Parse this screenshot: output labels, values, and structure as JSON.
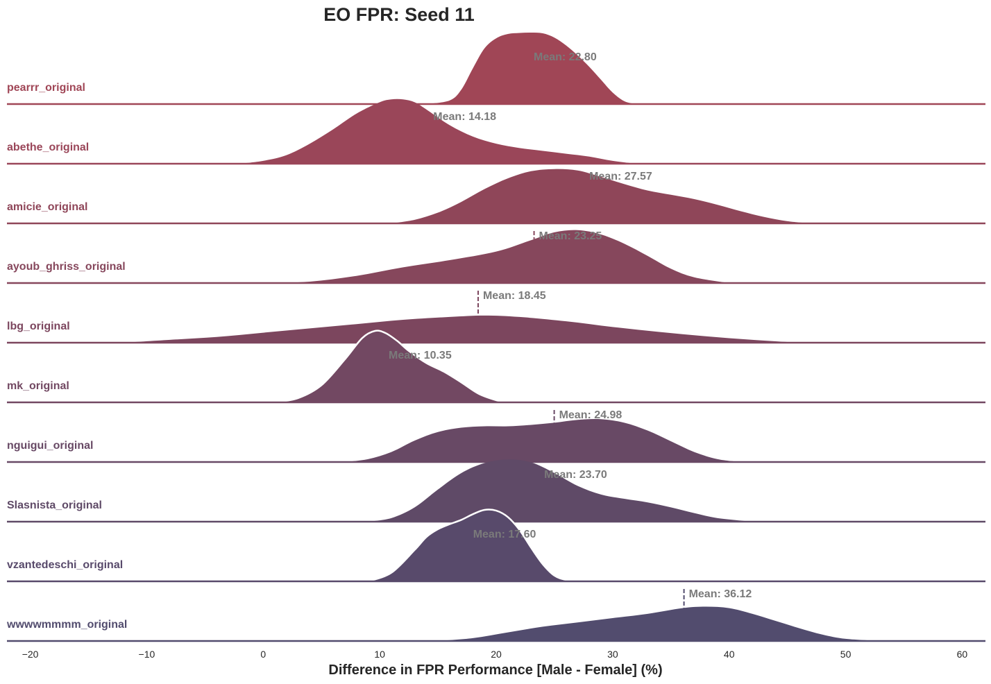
{
  "chart_data": {
    "type": "ridgeline-density",
    "title": "EO FPR: Seed 11",
    "xlabel": "Difference in FPR Performance [Male - Female] (%)",
    "ylabel": "",
    "xlim": [
      -22,
      62
    ],
    "xticks": [
      -20,
      -10,
      0,
      10,
      20,
      30,
      40,
      50,
      60
    ],
    "xtick_labels": [
      "−20",
      "−10",
      "0",
      "10",
      "20",
      "30",
      "40",
      "50",
      "60"
    ],
    "grid": false,
    "series": [
      {
        "name": "pearrr_original",
        "mean": 22.8,
        "mean_label": "Mean: 22.80",
        "color": "#a04656",
        "white_outline": false,
        "density": [
          [
            14,
            0
          ],
          [
            16,
            0.05
          ],
          [
            17,
            0.2
          ],
          [
            18,
            0.5
          ],
          [
            19,
            0.78
          ],
          [
            20,
            0.92
          ],
          [
            21,
            0.98
          ],
          [
            22,
            0.995
          ],
          [
            23,
            1.0
          ],
          [
            24,
            0.99
          ],
          [
            25,
            0.93
          ],
          [
            26,
            0.82
          ],
          [
            27,
            0.68
          ],
          [
            28,
            0.52
          ],
          [
            29,
            0.34
          ],
          [
            30,
            0.16
          ],
          [
            31,
            0.04
          ],
          [
            32,
            0
          ]
        ]
      },
      {
        "name": "abethe_original",
        "mean": 14.18,
        "mean_label": "Mean: 14.18",
        "color": "#9a4659",
        "white_outline": false,
        "density": [
          [
            -2,
            0
          ],
          [
            0,
            0.04
          ],
          [
            2,
            0.12
          ],
          [
            4,
            0.28
          ],
          [
            6,
            0.48
          ],
          [
            8,
            0.7
          ],
          [
            10,
            0.86
          ],
          [
            11,
            0.9
          ],
          [
            12,
            0.9
          ],
          [
            13,
            0.86
          ],
          [
            14,
            0.76
          ],
          [
            16,
            0.54
          ],
          [
            18,
            0.38
          ],
          [
            20,
            0.28
          ],
          [
            22,
            0.22
          ],
          [
            24,
            0.18
          ],
          [
            26,
            0.14
          ],
          [
            28,
            0.1
          ],
          [
            30,
            0.04
          ],
          [
            32,
            0
          ]
        ]
      },
      {
        "name": "amicie_original",
        "mean": 27.57,
        "mean_label": "Mean: 27.57",
        "color": "#8f4659",
        "white_outline": false,
        "density": [
          [
            11,
            0
          ],
          [
            13,
            0.05
          ],
          [
            15,
            0.15
          ],
          [
            17,
            0.3
          ],
          [
            19,
            0.48
          ],
          [
            21,
            0.63
          ],
          [
            23,
            0.73
          ],
          [
            25,
            0.76
          ],
          [
            27,
            0.74
          ],
          [
            29,
            0.65
          ],
          [
            31,
            0.55
          ],
          [
            33,
            0.46
          ],
          [
            35,
            0.4
          ],
          [
            37,
            0.34
          ],
          [
            39,
            0.26
          ],
          [
            41,
            0.17
          ],
          [
            43,
            0.09
          ],
          [
            45,
            0.03
          ],
          [
            47,
            0
          ]
        ]
      },
      {
        "name": "ayoub_ghriss_original",
        "mean": 23.25,
        "mean_label": "Mean: 23.25",
        "color": "#86475c",
        "white_outline": false,
        "density": [
          [
            0,
            0
          ],
          [
            4,
            0.02
          ],
          [
            8,
            0.1
          ],
          [
            12,
            0.22
          ],
          [
            16,
            0.32
          ],
          [
            20,
            0.44
          ],
          [
            23,
            0.6
          ],
          [
            25,
            0.71
          ],
          [
            27,
            0.74
          ],
          [
            29,
            0.68
          ],
          [
            31,
            0.55
          ],
          [
            33,
            0.38
          ],
          [
            35,
            0.2
          ],
          [
            37,
            0.08
          ],
          [
            40,
            0
          ]
        ]
      },
      {
        "name": "lbg_original",
        "mean": 18.45,
        "mean_label": "Mean: 18.45",
        "color": "#7c465e",
        "white_outline": false,
        "density": [
          [
            -12,
            0
          ],
          [
            -8,
            0.04
          ],
          [
            -4,
            0.08
          ],
          [
            0,
            0.14
          ],
          [
            4,
            0.2
          ],
          [
            8,
            0.26
          ],
          [
            12,
            0.32
          ],
          [
            16,
            0.36
          ],
          [
            19,
            0.38
          ],
          [
            22,
            0.36
          ],
          [
            26,
            0.3
          ],
          [
            30,
            0.22
          ],
          [
            34,
            0.15
          ],
          [
            38,
            0.09
          ],
          [
            42,
            0.04
          ],
          [
            46,
            0
          ]
        ]
      },
      {
        "name": "mk_original",
        "mean": 10.35,
        "mean_label": "Mean: 10.35",
        "color": "#724862",
        "white_outline": true,
        "density": [
          [
            1,
            0
          ],
          [
            3,
            0.06
          ],
          [
            5,
            0.24
          ],
          [
            7,
            0.6
          ],
          [
            8.5,
            0.9
          ],
          [
            9.6,
            1.0
          ],
          [
            10.5,
            0.97
          ],
          [
            11.5,
            0.86
          ],
          [
            12.5,
            0.72
          ],
          [
            14,
            0.55
          ],
          [
            15.5,
            0.43
          ],
          [
            17,
            0.28
          ],
          [
            18.5,
            0.12
          ],
          [
            20,
            0.03
          ],
          [
            21,
            0
          ]
        ]
      },
      {
        "name": "nguigui_original",
        "mean": 24.98,
        "mean_label": "Mean: 24.98",
        "color": "#684965",
        "white_outline": false,
        "density": [
          [
            7,
            0
          ],
          [
            9,
            0.04
          ],
          [
            11,
            0.14
          ],
          [
            13,
            0.3
          ],
          [
            15,
            0.42
          ],
          [
            17,
            0.48
          ],
          [
            19,
            0.5
          ],
          [
            21,
            0.5
          ],
          [
            23,
            0.52
          ],
          [
            25,
            0.55
          ],
          [
            27,
            0.59
          ],
          [
            29,
            0.6
          ],
          [
            31,
            0.55
          ],
          [
            33,
            0.44
          ],
          [
            35,
            0.29
          ],
          [
            37,
            0.14
          ],
          [
            39,
            0.04
          ],
          [
            41,
            0
          ]
        ]
      },
      {
        "name": "Slasnista_original",
        "mean": 23.7,
        "mean_label": "Mean: 23.70",
        "color": "#5f4a67",
        "white_outline": false,
        "density": [
          [
            9,
            0
          ],
          [
            11,
            0.05
          ],
          [
            13,
            0.2
          ],
          [
            15,
            0.45
          ],
          [
            17,
            0.68
          ],
          [
            19,
            0.82
          ],
          [
            21,
            0.87
          ],
          [
            23,
            0.83
          ],
          [
            25,
            0.68
          ],
          [
            27,
            0.5
          ],
          [
            29,
            0.38
          ],
          [
            31,
            0.32
          ],
          [
            33,
            0.27
          ],
          [
            35,
            0.2
          ],
          [
            37,
            0.12
          ],
          [
            39,
            0.05
          ],
          [
            42,
            0
          ]
        ]
      },
      {
        "name": "vzantedeschi_original",
        "mean": 17.6,
        "mean_label": "Mean: 17.60",
        "color": "#584a6b",
        "white_outline": true,
        "density": [
          [
            9,
            0
          ],
          [
            11,
            0.12
          ],
          [
            13,
            0.44
          ],
          [
            14,
            0.62
          ],
          [
            15,
            0.73
          ],
          [
            16,
            0.8
          ],
          [
            17,
            0.86
          ],
          [
            18,
            0.94
          ],
          [
            19,
            1.0
          ],
          [
            20,
            0.99
          ],
          [
            21,
            0.9
          ],
          [
            22,
            0.72
          ],
          [
            23,
            0.47
          ],
          [
            24,
            0.24
          ],
          [
            25,
            0.08
          ],
          [
            26,
            0.02
          ],
          [
            27,
            0
          ]
        ]
      },
      {
        "name": "wwwwmmmm_original",
        "mean": 36.12,
        "mean_label": "Mean: 36.12",
        "color": "#524c6e",
        "white_outline": false,
        "density": [
          [
            15,
            0
          ],
          [
            18,
            0.04
          ],
          [
            21,
            0.12
          ],
          [
            24,
            0.2
          ],
          [
            27,
            0.26
          ],
          [
            30,
            0.32
          ],
          [
            33,
            0.38
          ],
          [
            36,
            0.46
          ],
          [
            38,
            0.48
          ],
          [
            40,
            0.46
          ],
          [
            42,
            0.38
          ],
          [
            44,
            0.28
          ],
          [
            46,
            0.18
          ],
          [
            48,
            0.09
          ],
          [
            50,
            0.03
          ],
          [
            53,
            0
          ]
        ]
      }
    ]
  }
}
